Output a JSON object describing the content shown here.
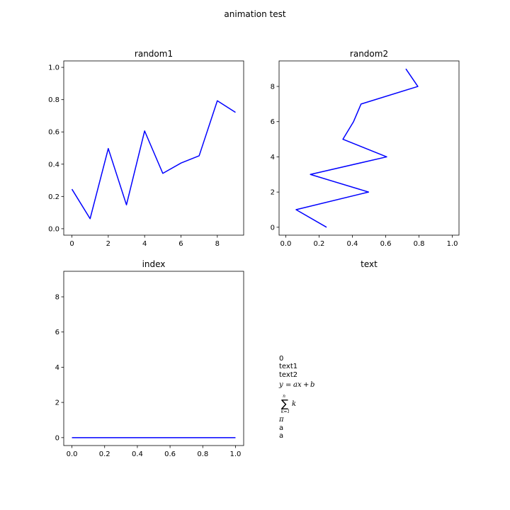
{
  "suptitle": "animation test",
  "line_color": "#0000ff",
  "chart_data": [
    {
      "type": "line",
      "title": "random1",
      "xlabel": "",
      "ylabel": "",
      "x": [
        0,
        1,
        2,
        3,
        4,
        5,
        6,
        7,
        8,
        9
      ],
      "series": [
        {
          "values": [
            0.245,
            0.062,
            0.497,
            0.148,
            0.606,
            0.343,
            0.407,
            0.452,
            0.793,
            0.721
          ]
        }
      ],
      "xlim": [
        -0.45,
        9.45
      ],
      "ylim": [
        -0.04,
        1.04
      ],
      "xticks": [
        0,
        2,
        4,
        6,
        8
      ],
      "xticklabels": [
        "0",
        "2",
        "4",
        "6",
        "8"
      ],
      "yticks": [
        0.0,
        0.2,
        0.4,
        0.6,
        0.8,
        1.0
      ],
      "yticklabels": [
        "0.0",
        "0.2",
        "0.4",
        "0.6",
        "0.8",
        "1.0"
      ],
      "grid": false
    },
    {
      "type": "line",
      "title": "random2",
      "xlabel": "",
      "ylabel": "",
      "x": [
        0.245,
        0.062,
        0.497,
        0.148,
        0.606,
        0.343,
        0.407,
        0.452,
        0.793,
        0.721
      ],
      "series": [
        {
          "values": [
            0,
            1,
            2,
            3,
            4,
            5,
            6,
            7,
            8,
            9
          ]
        }
      ],
      "xlim": [
        -0.04,
        1.04
      ],
      "ylim": [
        -0.45,
        9.45
      ],
      "xticks": [
        0.0,
        0.2,
        0.4,
        0.6,
        0.8,
        1.0
      ],
      "xticklabels": [
        "0.0",
        "0.2",
        "0.4",
        "0.6",
        "0.8",
        "1.0"
      ],
      "yticks": [
        0,
        2,
        4,
        6,
        8
      ],
      "yticklabels": [
        "0",
        "2",
        "4",
        "6",
        "8"
      ],
      "grid": false
    },
    {
      "type": "line",
      "title": "index",
      "xlabel": "",
      "ylabel": "",
      "x": [
        0.0,
        1.0
      ],
      "series": [
        {
          "values": [
            0,
            0
          ]
        }
      ],
      "xlim": [
        -0.05,
        1.05
      ],
      "ylim": [
        -0.45,
        9.45
      ],
      "xticks": [
        0.0,
        0.2,
        0.4,
        0.6,
        0.8,
        1.0
      ],
      "xticklabels": [
        "0.0",
        "0.2",
        "0.4",
        "0.6",
        "0.8",
        "1.0"
      ],
      "yticks": [
        0,
        2,
        4,
        6,
        8
      ],
      "yticklabels": [
        "0",
        "2",
        "4",
        "6",
        "8"
      ],
      "grid": false
    },
    {
      "type": "text",
      "title": "text",
      "lines": [
        "0",
        "text1",
        "text2"
      ],
      "math_line": {
        "y": "y",
        "eq": "=",
        "a": "a",
        "x": "x",
        "plus": "+",
        "b": "b"
      },
      "sum_line": {
        "upper": "n",
        "symbol": "∑",
        "lower": "k=1",
        "body": "k"
      },
      "tail_lines": [
        "π",
        "a",
        "a"
      ]
    }
  ]
}
